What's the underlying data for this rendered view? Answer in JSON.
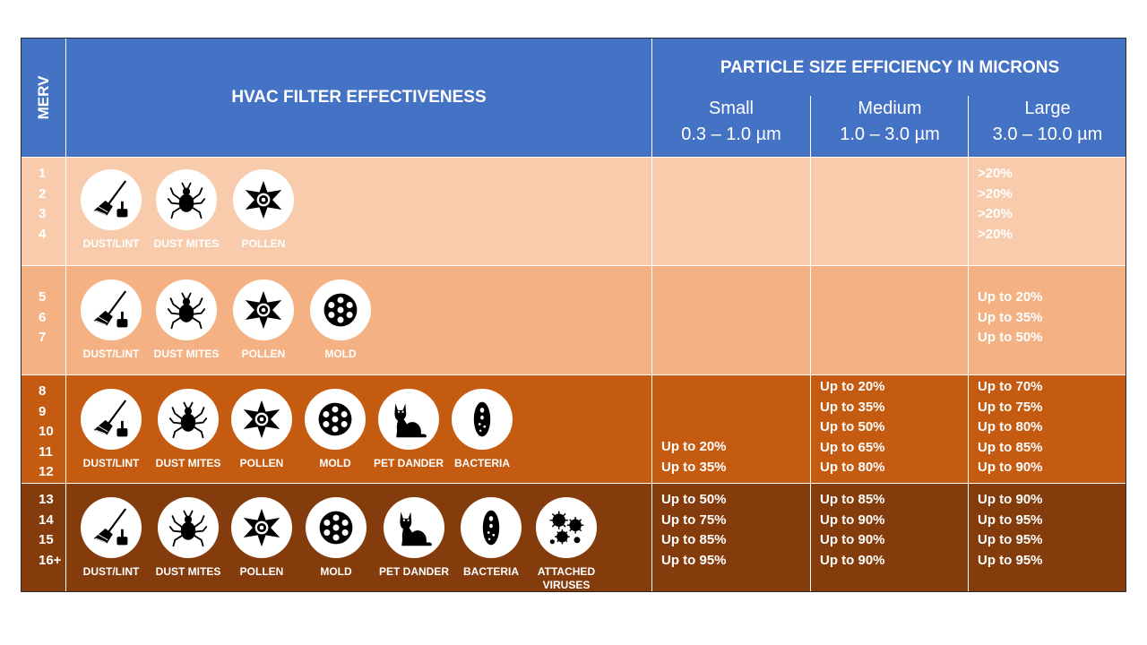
{
  "header": {
    "merv": "MERV",
    "effectiveness": "HVAC FILTER EFFECTIVENESS",
    "particle_title": "PARTICLE SIZE EFFICIENCY IN MICRONS",
    "sizes": [
      {
        "name": "Small",
        "range": "0.3 – 1.0 µm"
      },
      {
        "name": "Medium",
        "range": "1.0 – 3.0 µm"
      },
      {
        "name": "Large",
        "range": "3.0 – 10.0 µm"
      }
    ]
  },
  "colors": {
    "header": "#4472c4",
    "tier1": "#f8cbad",
    "tier2": "#f4b183",
    "tier3": "#c55a11",
    "tier4": "#843c0c"
  },
  "rows": [
    {
      "merv": [
        "1",
        "2",
        "3",
        "4"
      ],
      "icons": [
        {
          "icon": "broom-dustpan-icon",
          "label": "DUST/LINT"
        },
        {
          "icon": "dust-mite-icon",
          "label": "DUST MITES"
        },
        {
          "icon": "pollen-flower-icon",
          "label": "POLLEN"
        }
      ],
      "small": [],
      "medium": [],
      "large": [
        ">20%",
        ">20%",
        ">20%",
        ">20%"
      ]
    },
    {
      "merv": [
        "5",
        "6",
        "7"
      ],
      "icons": [
        {
          "icon": "broom-dustpan-icon",
          "label": "DUST/LINT"
        },
        {
          "icon": "dust-mite-icon",
          "label": "DUST MITES"
        },
        {
          "icon": "pollen-flower-icon",
          "label": "POLLEN"
        },
        {
          "icon": "mold-spore-icon",
          "label": "MOLD"
        }
      ],
      "small": [],
      "medium": [],
      "large": [
        "Up to 20%",
        "Up to 35%",
        "Up to 50%"
      ]
    },
    {
      "merv": [
        "8",
        "9",
        "10",
        "11",
        "12"
      ],
      "icons": [
        {
          "icon": "broom-dustpan-icon",
          "label": "DUST/LINT"
        },
        {
          "icon": "dust-mite-icon",
          "label": "DUST MITES"
        },
        {
          "icon": "pollen-flower-icon",
          "label": "POLLEN"
        },
        {
          "icon": "mold-spore-icon",
          "label": "MOLD"
        },
        {
          "icon": "cat-icon",
          "label": "PET DANDER"
        },
        {
          "icon": "bacteria-icon",
          "label": "BACTERIA"
        }
      ],
      "small": [
        "Up to 20%",
        "Up to 35%"
      ],
      "medium": [
        "Up to 20%",
        "Up to 35%",
        "Up to 50%",
        "Up to 65%",
        "Up to 80%"
      ],
      "large": [
        "Up to 70%",
        "Up to 75%",
        "Up to 80%",
        "Up to 85%",
        "Up to 90%"
      ]
    },
    {
      "merv": [
        "13",
        "14",
        "15",
        "16+"
      ],
      "icons": [
        {
          "icon": "broom-dustpan-icon",
          "label": "DUST/LINT"
        },
        {
          "icon": "dust-mite-icon",
          "label": "DUST MITES"
        },
        {
          "icon": "pollen-flower-icon",
          "label": "POLLEN"
        },
        {
          "icon": "mold-spore-icon",
          "label": "MOLD"
        },
        {
          "icon": "cat-icon",
          "label": "PET DANDER"
        },
        {
          "icon": "bacteria-icon",
          "label": "BACTERIA"
        },
        {
          "icon": "virus-icon",
          "label": "ATTACHED\nVIRUSES"
        }
      ],
      "small": [
        "Up to 50%",
        "Up to 75%",
        "Up to 85%",
        "Up to 95%"
      ],
      "medium": [
        "Up to 85%",
        "Up to 90%",
        "Up to 90%",
        "Up to 90%"
      ],
      "large": [
        "Up to 90%",
        "Up to 95%",
        "Up to 95%",
        "Up to 95%"
      ]
    }
  ]
}
